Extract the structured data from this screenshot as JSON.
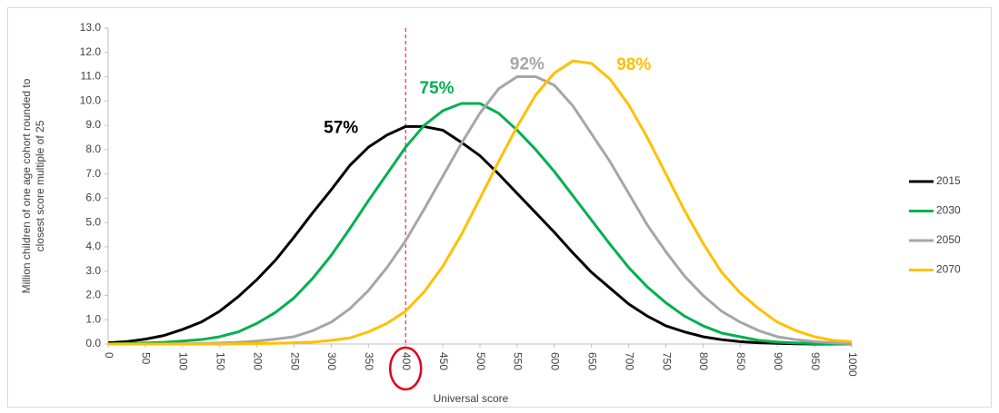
{
  "chart_data": {
    "type": "line",
    "xlabel": "Universal score",
    "ylabel": [
      "Million children of one age cohort rounded to",
      "closest score multiple of 25"
    ],
    "x": [
      0,
      25,
      50,
      75,
      100,
      125,
      150,
      175,
      200,
      225,
      250,
      275,
      300,
      325,
      350,
      375,
      400,
      425,
      450,
      475,
      500,
      525,
      550,
      575,
      600,
      625,
      650,
      675,
      700,
      725,
      750,
      775,
      800,
      825,
      850,
      875,
      900,
      925,
      950,
      975,
      1000
    ],
    "xlim": [
      0,
      1000
    ],
    "xticks": [
      0,
      50,
      100,
      150,
      200,
      250,
      300,
      350,
      400,
      450,
      500,
      550,
      600,
      650,
      700,
      750,
      800,
      850,
      900,
      950,
      1000
    ],
    "ylim": [
      0,
      13
    ],
    "yticks": [
      {
        "value": 0,
        "label": "0.0"
      },
      {
        "value": 1,
        "label": "1.0"
      },
      {
        "value": 2,
        "label": "2.0"
      },
      {
        "value": 3,
        "label": "3.0"
      },
      {
        "value": 4,
        "label": "4.0"
      },
      {
        "value": 5,
        "label": "5.0"
      },
      {
        "value": 6,
        "label": "6.0"
      },
      {
        "value": 7,
        "label": "7.0"
      },
      {
        "value": 8,
        "label": "8.0"
      },
      {
        "value": 9,
        "label": "9.0"
      },
      {
        "value": 10,
        "label": "10.0"
      },
      {
        "value": 11,
        "label": "11.0"
      },
      {
        "value": 12,
        "label": "12.0"
      },
      {
        "value": 13,
        "label": "13.0"
      }
    ],
    "grid": false,
    "legend": "right",
    "marker_x": 400,
    "marker_color": "#e3001b",
    "series": [
      {
        "name": "2015",
        "color": "#000000",
        "label": "57%",
        "values": [
          0.05,
          0.1,
          0.2,
          0.35,
          0.6,
          0.9,
          1.35,
          1.95,
          2.65,
          3.45,
          4.4,
          5.4,
          6.35,
          7.35,
          8.1,
          8.6,
          8.95,
          8.95,
          8.8,
          8.3,
          7.75,
          7.0,
          6.2,
          5.4,
          4.6,
          3.75,
          2.95,
          2.3,
          1.65,
          1.15,
          0.75,
          0.5,
          0.3,
          0.18,
          0.1,
          0.05,
          0.03,
          0.01,
          0,
          0,
          0
        ]
      },
      {
        "name": "2030",
        "color": "#00b050",
        "label": "75%",
        "values": [
          0,
          0.02,
          0.04,
          0.07,
          0.12,
          0.18,
          0.3,
          0.5,
          0.85,
          1.3,
          1.9,
          2.7,
          3.65,
          4.75,
          5.9,
          7.0,
          8.1,
          9.0,
          9.6,
          9.9,
          9.9,
          9.5,
          8.8,
          8.0,
          7.1,
          6.1,
          5.1,
          4.1,
          3.15,
          2.35,
          1.7,
          1.15,
          0.75,
          0.45,
          0.3,
          0.15,
          0.08,
          0.04,
          0.02,
          0.01,
          0
        ]
      },
      {
        "name": "2050",
        "color": "#a6a6a6",
        "label": "92%",
        "values": [
          0,
          0,
          0,
          0,
          0.01,
          0.02,
          0.04,
          0.07,
          0.12,
          0.2,
          0.3,
          0.55,
          0.9,
          1.45,
          2.2,
          3.15,
          4.25,
          5.55,
          6.9,
          8.25,
          9.5,
          10.5,
          11.0,
          11.0,
          10.65,
          9.8,
          8.65,
          7.5,
          6.2,
          4.9,
          3.8,
          2.8,
          2.0,
          1.35,
          0.9,
          0.55,
          0.3,
          0.18,
          0.1,
          0.05,
          0.02
        ]
      },
      {
        "name": "2070",
        "color": "#ffc000",
        "label": "98%",
        "values": [
          0,
          0,
          0,
          0,
          0,
          0,
          0,
          0.01,
          0.02,
          0.03,
          0.05,
          0.08,
          0.15,
          0.25,
          0.5,
          0.85,
          1.35,
          2.15,
          3.2,
          4.5,
          6.0,
          7.5,
          8.95,
          10.25,
          11.15,
          11.65,
          11.55,
          10.9,
          9.85,
          8.5,
          7.0,
          5.5,
          4.15,
          2.95,
          2.1,
          1.45,
          0.9,
          0.55,
          0.3,
          0.15,
          0.1
        ]
      }
    ]
  }
}
